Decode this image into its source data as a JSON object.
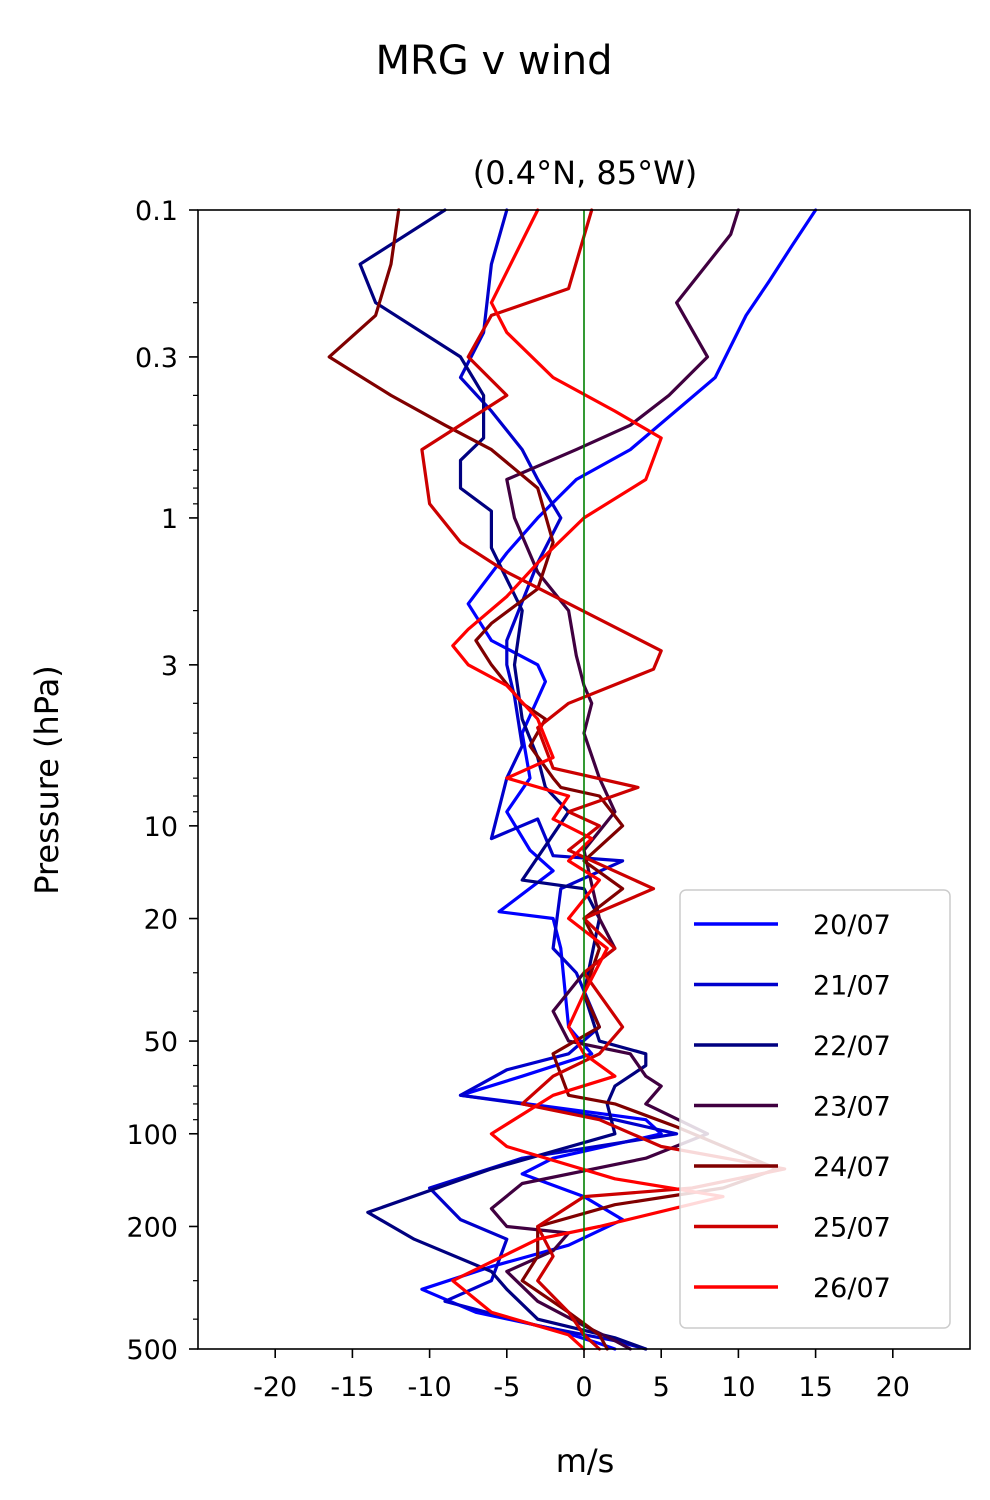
{
  "chart_data": {
    "type": "line",
    "title": "MRG v wind",
    "subtitle": "(0.4°N, 85°W)",
    "xlabel": "m/s",
    "ylabel": "Pressure (hPa)",
    "xlim": [
      -25,
      25
    ],
    "ylim": [
      500,
      0.1
    ],
    "yscale": "log",
    "xticks": [
      -20,
      -15,
      -10,
      -5,
      0,
      5,
      10,
      15,
      20
    ],
    "xtick_labels": [
      "-20",
      "-15",
      "-10",
      "-5",
      "0",
      "5",
      "10",
      "15",
      "20"
    ],
    "yticks": [
      0.1,
      0.3,
      1,
      3,
      10,
      20,
      50,
      100,
      200,
      500
    ],
    "ytick_labels": [
      "0.1",
      "0.3",
      "1",
      "3",
      "10",
      "20",
      "50",
      "100",
      "200",
      "500"
    ],
    "reference_line": {
      "x": 0,
      "color": "#008000"
    },
    "legend_position": "lower-right",
    "grid": false,
    "series": [
      {
        "name": "20/07",
        "color": "#0000ff",
        "points": [
          [
            15,
            0.1
          ],
          [
            13.5,
            0.13
          ],
          [
            12,
            0.17
          ],
          [
            10.5,
            0.22
          ],
          [
            8.5,
            0.35
          ],
          [
            3,
            0.6
          ],
          [
            -0.5,
            0.75
          ],
          [
            -3,
            1.0
          ],
          [
            -5,
            1.3
          ],
          [
            -7.5,
            1.9
          ],
          [
            -6,
            2.5
          ],
          [
            -3,
            3.0
          ],
          [
            -2.5,
            3.4
          ],
          [
            -4,
            5.0
          ],
          [
            -3.5,
            7.0
          ],
          [
            -5,
            9.0
          ],
          [
            -3.5,
            12.0
          ],
          [
            -2,
            14.0
          ],
          [
            -5.5,
            19.0
          ],
          [
            -2,
            20.0
          ],
          [
            -1.5,
            25.0
          ],
          [
            -1,
            45.0
          ],
          [
            0.5,
            55.0
          ],
          [
            -4,
            65.0
          ],
          [
            -8,
            75.0
          ],
          [
            -2,
            82.0
          ],
          [
            4,
            90.0
          ],
          [
            5,
            100.0
          ],
          [
            -2,
            120.0
          ],
          [
            -4,
            135.0
          ],
          [
            0,
            160.0
          ],
          [
            2.5,
            190.0
          ],
          [
            -1,
            230.0
          ],
          [
            -6,
            270.0
          ],
          [
            -10.5,
            320.0
          ],
          [
            -7,
            380.0
          ],
          [
            -2,
            430.0
          ],
          [
            1,
            480.0
          ],
          [
            2,
            500.0
          ]
        ]
      },
      {
        "name": "21/07",
        "color": "#0000cc",
        "points": [
          [
            -5,
            0.1
          ],
          [
            -6,
            0.15
          ],
          [
            -6.5,
            0.25
          ],
          [
            -8,
            0.35
          ],
          [
            -6,
            0.45
          ],
          [
            -4,
            0.6
          ],
          [
            -3,
            0.75
          ],
          [
            -1.5,
            1.0
          ],
          [
            -3,
            1.4
          ],
          [
            -5,
            2.5
          ],
          [
            -5,
            3.0
          ],
          [
            -4.5,
            3.8
          ],
          [
            -4,
            5.5
          ],
          [
            -5,
            7.0
          ],
          [
            -6,
            11.0
          ],
          [
            -3,
            9.5
          ],
          [
            -2,
            12.5
          ],
          [
            2.5,
            13.0
          ],
          [
            -1.5,
            16.0
          ],
          [
            -2,
            25.0
          ],
          [
            -0.5,
            30.0
          ],
          [
            1,
            45.0
          ],
          [
            -1,
            55.0
          ],
          [
            -5,
            62.0
          ],
          [
            -8,
            75.0
          ],
          [
            -4,
            80.0
          ],
          [
            2,
            90.0
          ],
          [
            6,
            100.0
          ],
          [
            -4,
            120.0
          ],
          [
            -10,
            150.0
          ],
          [
            -8,
            190.0
          ],
          [
            -5,
            220.0
          ],
          [
            -6,
            300.0
          ],
          [
            -9,
            350.0
          ],
          [
            -3,
            420.0
          ],
          [
            2,
            470.0
          ],
          [
            4,
            500.0
          ]
        ]
      },
      {
        "name": "22/07",
        "color": "#000080",
        "points": [
          [
            -9,
            0.1
          ],
          [
            -14.5,
            0.15
          ],
          [
            -13.5,
            0.2
          ],
          [
            -8,
            0.3
          ],
          [
            -6.5,
            0.4
          ],
          [
            -6.5,
            0.55
          ],
          [
            -8,
            0.65
          ],
          [
            -8,
            0.8
          ],
          [
            -6,
            0.95
          ],
          [
            -6,
            1.25
          ],
          [
            -4,
            2.0
          ],
          [
            -4.5,
            3.0
          ],
          [
            -4,
            4.5
          ],
          [
            -3,
            6.0
          ],
          [
            -2.5,
            7.5
          ],
          [
            -1,
            9.0
          ],
          [
            -4,
            15.0
          ],
          [
            0,
            16.0
          ],
          [
            1,
            20.0
          ],
          [
            0,
            35.0
          ],
          [
            1,
            50.0
          ],
          [
            4,
            55.0
          ],
          [
            4,
            60.0
          ],
          [
            2,
            70.0
          ],
          [
            1.5,
            80.0
          ],
          [
            2,
            100.0
          ],
          [
            -6,
            130.0
          ],
          [
            -14,
            180.0
          ],
          [
            -11,
            220.0
          ],
          [
            -6,
            280.0
          ],
          [
            -5,
            320.0
          ],
          [
            -3,
            400.0
          ],
          [
            2,
            460.0
          ],
          [
            4,
            500.0
          ]
        ]
      },
      {
        "name": "23/07",
        "color": "#400040",
        "points": [
          [
            10,
            0.1
          ],
          [
            9.5,
            0.12
          ],
          [
            6,
            0.2
          ],
          [
            8,
            0.3
          ],
          [
            5.5,
            0.4
          ],
          [
            3,
            0.5
          ],
          [
            -0.5,
            0.6
          ],
          [
            -5,
            0.75
          ],
          [
            -4.5,
            1.0
          ],
          [
            -3,
            1.5
          ],
          [
            -1,
            2.0
          ],
          [
            -0.5,
            2.8
          ],
          [
            0,
            3.5
          ],
          [
            0.5,
            4.0
          ],
          [
            0,
            5.0
          ],
          [
            1,
            7.0
          ],
          [
            2,
            9.0
          ],
          [
            0,
            12.0
          ],
          [
            1,
            20.0
          ],
          [
            2,
            25.0
          ],
          [
            0,
            30.0
          ],
          [
            -2,
            40.0
          ],
          [
            -1,
            50.0
          ],
          [
            3,
            55.0
          ],
          [
            4,
            65.0
          ],
          [
            5,
            70.0
          ],
          [
            4,
            80.0
          ],
          [
            8,
            100.0
          ],
          [
            4,
            120.0
          ],
          [
            -4,
            145.0
          ],
          [
            -6,
            175.0
          ],
          [
            -5,
            200.0
          ],
          [
            -1,
            210.0
          ],
          [
            -2,
            240.0
          ],
          [
            -5,
            280.0
          ],
          [
            -3,
            350.0
          ],
          [
            0,
            420.0
          ],
          [
            2,
            470.0
          ],
          [
            3,
            500.0
          ]
        ]
      },
      {
        "name": "24/07",
        "color": "#800000",
        "points": [
          [
            -12,
            0.1
          ],
          [
            -12.5,
            0.15
          ],
          [
            -13.5,
            0.22
          ],
          [
            -16.5,
            0.3
          ],
          [
            -12.5,
            0.4
          ],
          [
            -9,
            0.5
          ],
          [
            -6,
            0.6
          ],
          [
            -3,
            0.8
          ],
          [
            -2,
            1.2
          ],
          [
            -3,
            1.7
          ],
          [
            -6,
            2.2
          ],
          [
            -7,
            2.5
          ],
          [
            -6,
            3.0
          ],
          [
            -4,
            4.0
          ],
          [
            -2.5,
            4.5
          ],
          [
            -3.5,
            5.5
          ],
          [
            -2,
            7.0
          ],
          [
            -1.5,
            7.5
          ],
          [
            1,
            8.0
          ],
          [
            2.5,
            10.0
          ],
          [
            0,
            13.0
          ],
          [
            2.5,
            16.0
          ],
          [
            0,
            20.0
          ],
          [
            1,
            25.0
          ],
          [
            0,
            35.0
          ],
          [
            1,
            45.0
          ],
          [
            -2,
            55.0
          ],
          [
            -1,
            75.0
          ],
          [
            2,
            80.0
          ],
          [
            6,
            95.0
          ],
          [
            12.5,
            130.0
          ],
          [
            9,
            150.0
          ],
          [
            2,
            170.0
          ],
          [
            -3,
            200.0
          ],
          [
            -3,
            250.0
          ],
          [
            -4,
            300.0
          ],
          [
            -1,
            380.0
          ],
          [
            1,
            450.0
          ],
          [
            1.5,
            500.0
          ]
        ]
      },
      {
        "name": "25/07",
        "color": "#cc0000",
        "points": [
          [
            0.5,
            0.1
          ],
          [
            -1,
            0.18
          ],
          [
            -6,
            0.22
          ],
          [
            -7.5,
            0.3
          ],
          [
            -5,
            0.4
          ],
          [
            -10.5,
            0.6
          ],
          [
            -10,
            0.9
          ],
          [
            -8,
            1.2
          ],
          [
            -5,
            1.5
          ],
          [
            5,
            2.7
          ],
          [
            4.5,
            3.1
          ],
          [
            -1,
            4.0
          ],
          [
            -3,
            4.8
          ],
          [
            -2,
            6.5
          ],
          [
            3.5,
            7.5
          ],
          [
            -1,
            9.0
          ],
          [
            1,
            10.0
          ],
          [
            -1,
            12.0
          ],
          [
            4.5,
            16.0
          ],
          [
            0,
            20.0
          ],
          [
            2,
            25.0
          ],
          [
            0,
            30.0
          ],
          [
            2.5,
            45.0
          ],
          [
            1,
            55.0
          ],
          [
            -2,
            65.0
          ],
          [
            -4,
            80.0
          ],
          [
            1,
            90.0
          ],
          [
            5,
            110.0
          ],
          [
            13,
            130.0
          ],
          [
            7,
            150.0
          ],
          [
            0,
            160.0
          ],
          [
            -3,
            200.0
          ],
          [
            -2,
            250.0
          ],
          [
            -3,
            300.0
          ],
          [
            -1,
            380.0
          ],
          [
            0,
            450.0
          ],
          [
            1,
            500.0
          ]
        ]
      },
      {
        "name": "26/07",
        "color": "#ff0000",
        "points": [
          [
            -3,
            0.1
          ],
          [
            -6,
            0.2
          ],
          [
            -5,
            0.25
          ],
          [
            -2,
            0.35
          ],
          [
            2,
            0.45
          ],
          [
            5,
            0.55
          ],
          [
            4,
            0.75
          ],
          [
            0,
            1.0
          ],
          [
            -3,
            1.4
          ],
          [
            -5,
            1.8
          ],
          [
            -7.5,
            2.3
          ],
          [
            -8.5,
            2.6
          ],
          [
            -7.5,
            3.0
          ],
          [
            -5,
            3.5
          ],
          [
            -3,
            4.5
          ],
          [
            -2,
            6.0
          ],
          [
            -5,
            7.0
          ],
          [
            -1,
            8.0
          ],
          [
            -2,
            9.5
          ],
          [
            0.5,
            11.0
          ],
          [
            -1,
            13.0
          ],
          [
            1,
            15.0
          ],
          [
            -1,
            20.0
          ],
          [
            1.5,
            25.0
          ],
          [
            0,
            35.0
          ],
          [
            -1,
            45.0
          ],
          [
            0,
            55.0
          ],
          [
            2,
            65.0
          ],
          [
            -2,
            75.0
          ],
          [
            -6,
            100.0
          ],
          [
            -5,
            110.0
          ],
          [
            2,
            140.0
          ],
          [
            9,
            160.0
          ],
          [
            1,
            200.0
          ],
          [
            -3,
            220.0
          ],
          [
            -8.5,
            300.0
          ],
          [
            -6,
            380.0
          ],
          [
            -1,
            450.0
          ],
          [
            0,
            500.0
          ]
        ]
      }
    ]
  }
}
